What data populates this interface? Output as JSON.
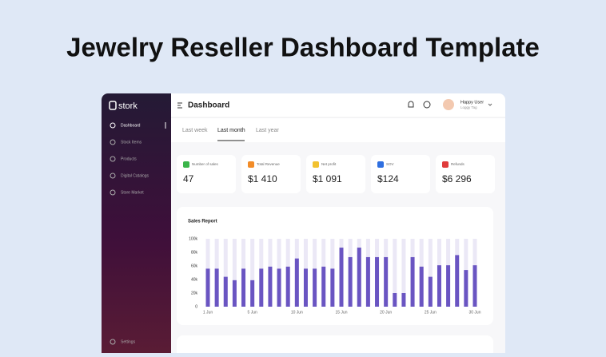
{
  "page_title": "Jewelry Reseller Dashboard Template",
  "sidebar": {
    "logo": "stork",
    "items": [
      "Dashboard",
      "Stock Items",
      "Products",
      "Digital Catalogs",
      "Store Market"
    ],
    "footer": "Settings"
  },
  "header": {
    "title": "Dashboard",
    "user_name": "Happy User",
    "user_role": "Loggy Tag"
  },
  "tabs": {
    "items": [
      "Last week",
      "Last month",
      "Last year"
    ],
    "active": 1
  },
  "stats": [
    {
      "label": "Number of sales",
      "value": "47",
      "color": "#3bb54a"
    },
    {
      "label": "Total Revenue",
      "value": "$1 410",
      "color": "#f28c28"
    },
    {
      "label": "Net profit",
      "value": "$1 091",
      "color": "#f2c230"
    },
    {
      "label": "SOV",
      "value": "$124",
      "color": "#2f6fe0"
    },
    {
      "label": "Refunds",
      "value": "$6 296",
      "color": "#e03b3b"
    }
  ],
  "chart_data": {
    "type": "bar",
    "title": "Sales Report",
    "categories": [
      "1 Jun",
      null,
      null,
      null,
      null,
      "5 Jun",
      null,
      null,
      null,
      null,
      "10 Jun",
      null,
      null,
      null,
      null,
      "15 Jun",
      null,
      null,
      null,
      null,
      "20 Jun",
      null,
      null,
      null,
      null,
      "25 Jun",
      null,
      null,
      null,
      null,
      "30 Jun"
    ],
    "values": [
      56000,
      56000,
      44000,
      39000,
      56000,
      39000,
      56000,
      59000,
      56000,
      59000,
      71000,
      56000,
      56000,
      59000,
      56000,
      87000,
      73000,
      87000,
      73000,
      73000,
      73000,
      20000,
      20000,
      73000,
      59000,
      44000,
      61000,
      61000,
      76000,
      54000,
      61000
    ],
    "color": "#6a55c2",
    "track_color": "#ebe8f6",
    "ylim": [
      0,
      100000
    ],
    "yticks": [
      0,
      {
        "value": 20000,
        "label": "20k"
      },
      {
        "value": 40000,
        "label": "40k"
      },
      {
        "value": 60000,
        "label": "60k"
      },
      {
        "value": 80000,
        "label": "80k"
      },
      {
        "value": 100000,
        "label": "100k"
      }
    ]
  }
}
